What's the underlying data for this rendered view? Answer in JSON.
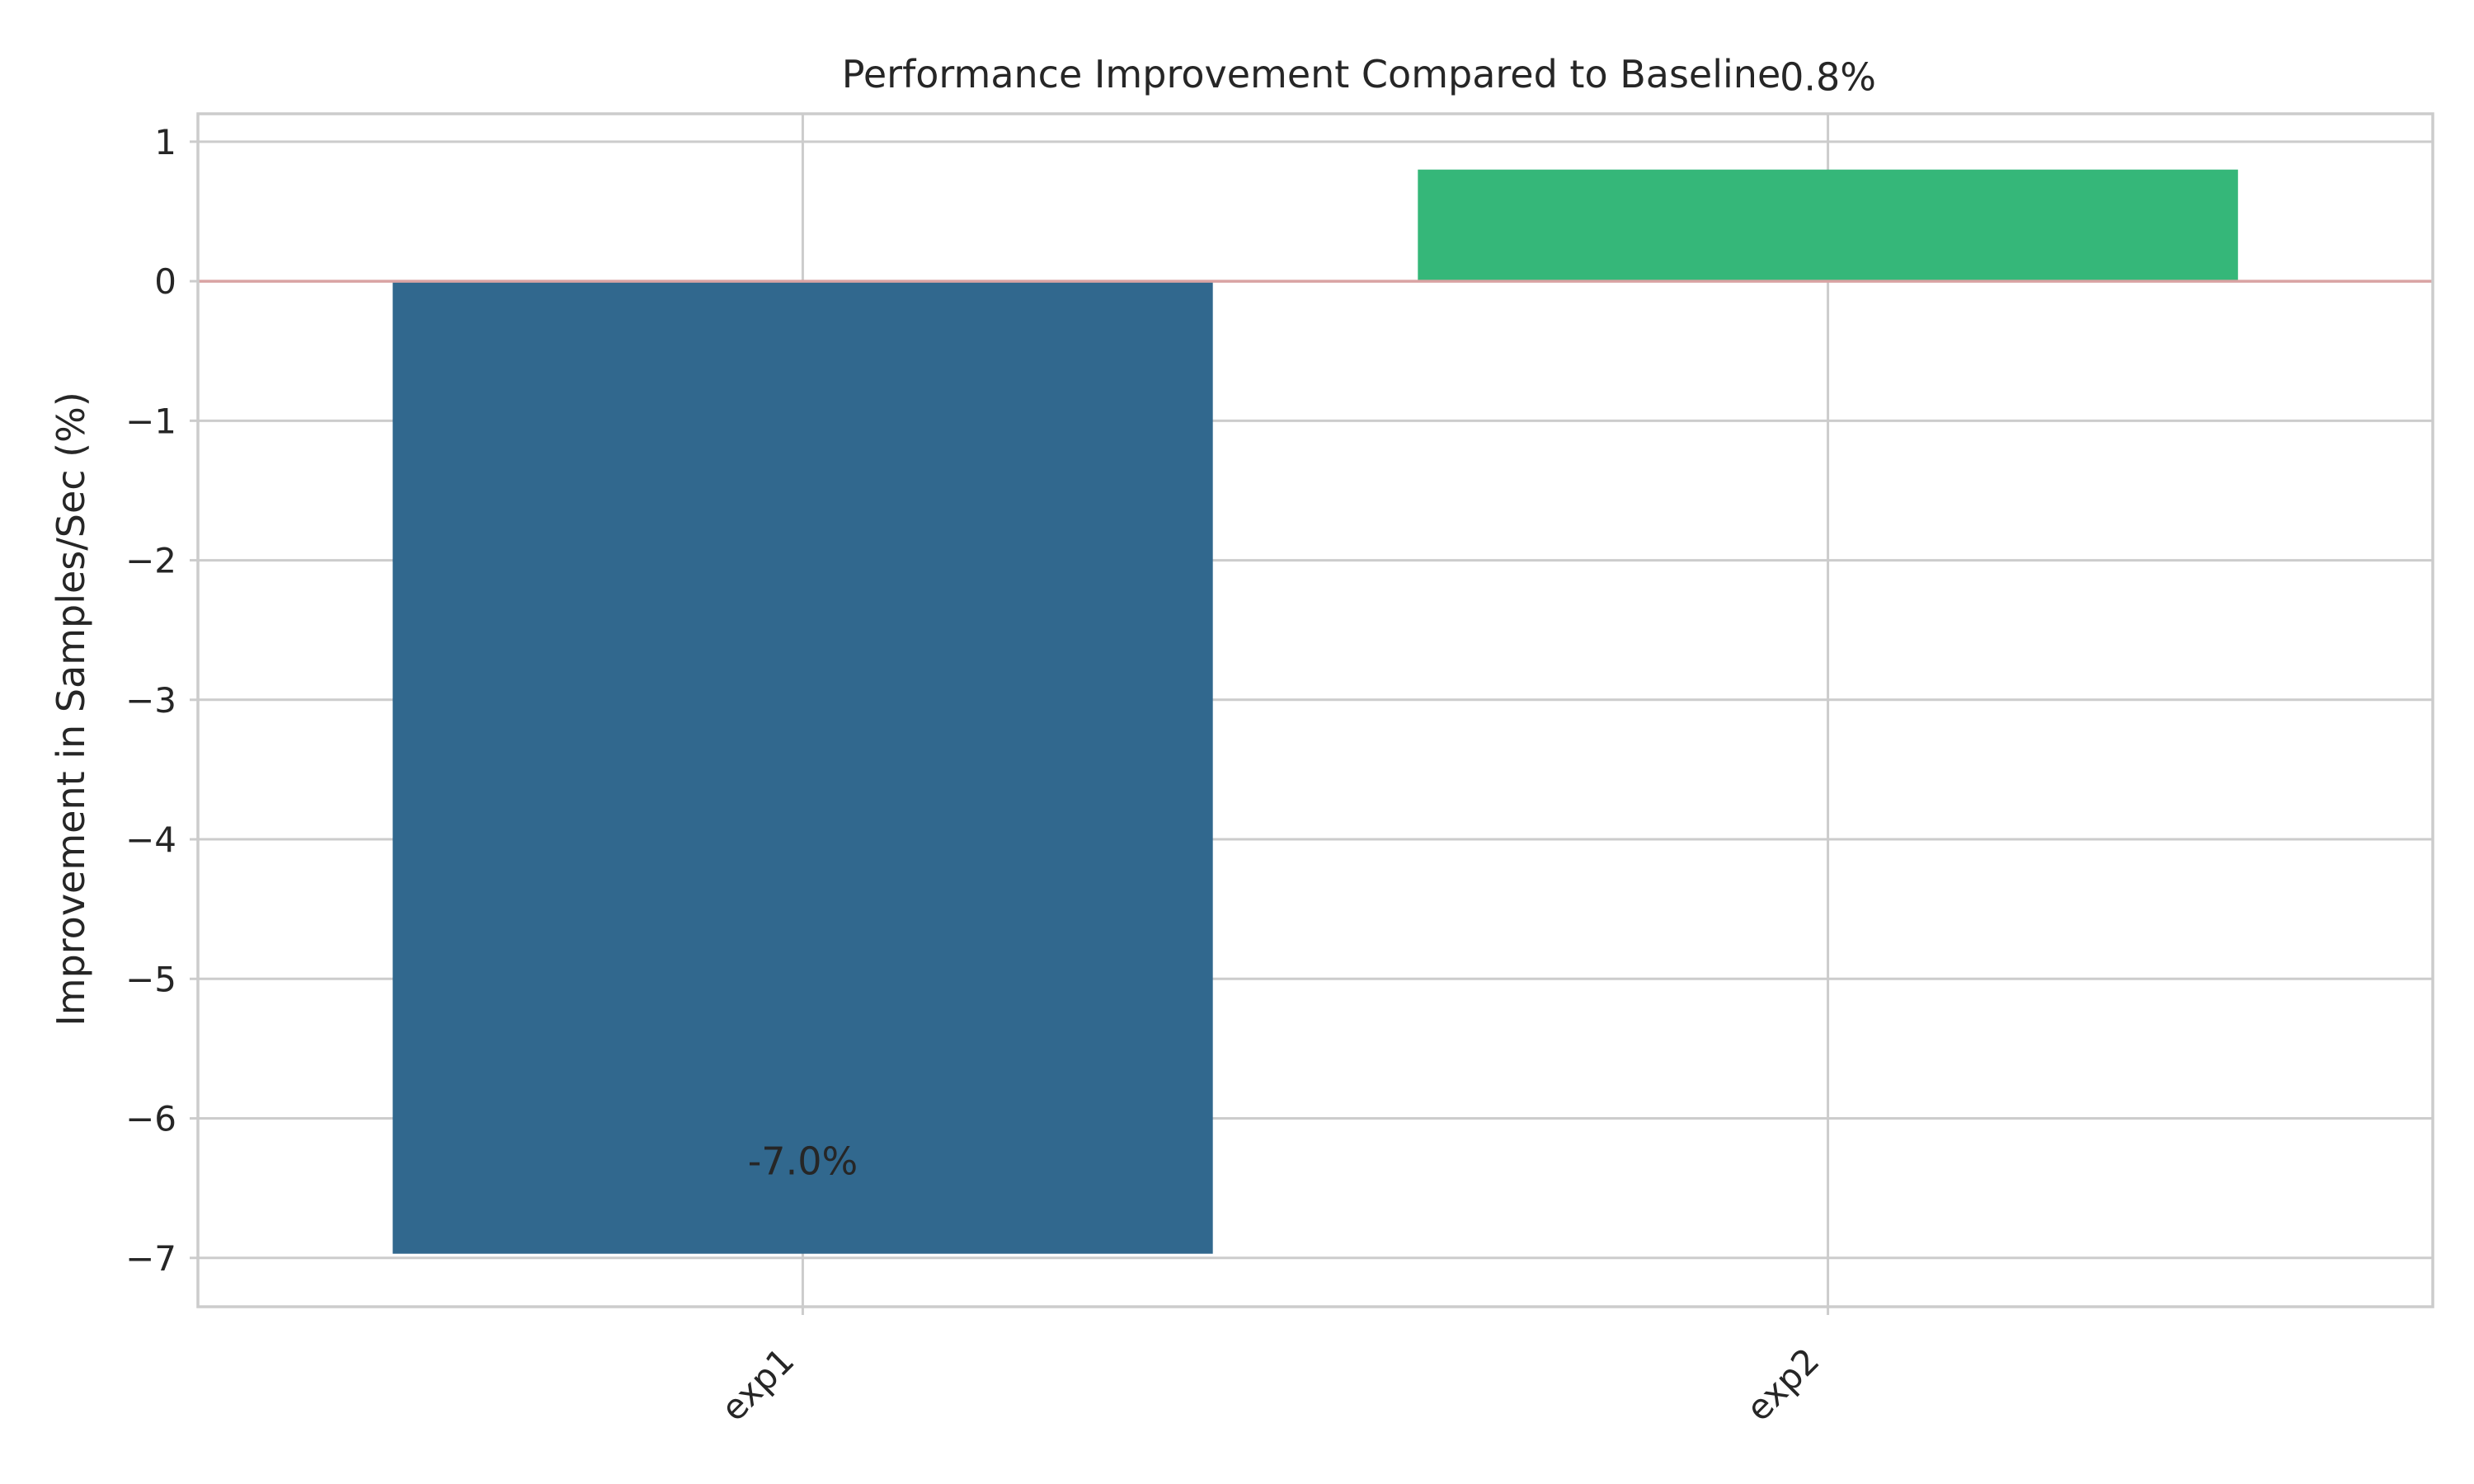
{
  "chart_data": {
    "type": "bar",
    "title": "Performance Improvement Compared to Baseline",
    "xlabel": "",
    "ylabel": "Improvement in Samples/Sec (%)",
    "categories": [
      "exp1",
      "exp2"
    ],
    "values": [
      -6.97,
      0.8
    ],
    "data_labels": [
      "-7.0%",
      "0.8%"
    ],
    "bar_colors": [
      "#31688e",
      "#35b779"
    ],
    "ylim": [
      -7.35,
      1.2
    ],
    "yticks": [
      1,
      0,
      -1,
      -2,
      -3,
      -4,
      -5,
      -6,
      -7
    ],
    "ytick_labels": [
      "1",
      "0",
      "−1",
      "−2",
      "−3",
      "−4",
      "−5",
      "−6",
      "−7"
    ],
    "baseline": {
      "value": 0,
      "color": "#d9a3a3"
    },
    "grid": true,
    "legend": null
  }
}
